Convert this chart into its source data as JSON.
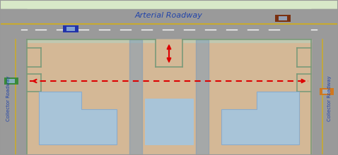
{
  "fig_width": 4.78,
  "fig_height": 2.2,
  "dpi": 100,
  "colors": {
    "light_green": "#d8e8c8",
    "road_gray": "#9a9a9a",
    "road_dark": "#888888",
    "parcel_tan": "#d4b896",
    "blue_lane": "#7799bb",
    "building_blue": "#a8c4d8",
    "building_edge": "#8aabcc",
    "curb_green": "#7a9a7a",
    "sidewalk": "#c0c8b0",
    "yellow": "#c8aa30",
    "green_car": "#3a8a3a",
    "orange_car": "#d07820",
    "blue_car": "#2233aa",
    "brown_car": "#7a3010",
    "red_arrow": "#dd0000",
    "border": "#999999",
    "text_blue": "#2244aa",
    "white": "#ffffff",
    "light_gray": "#bbbbbb"
  },
  "title": "Arterial Roadway",
  "left_road_label": "Collector Roadway",
  "right_road_label": "Collector Roadway"
}
